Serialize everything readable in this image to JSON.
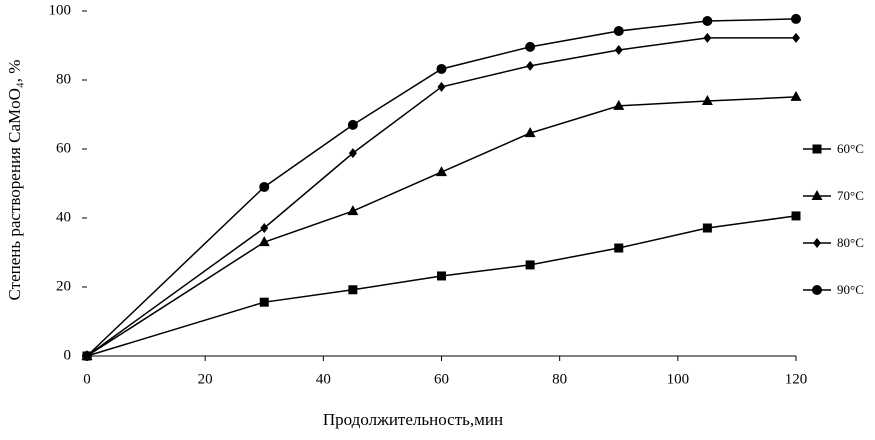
{
  "chart_data": {
    "type": "line",
    "x_label": "Продолжительность,мин",
    "y_label": "Степень растворения CaMoO₄, %",
    "x": [
      0,
      30,
      45,
      60,
      75,
      90,
      105,
      120
    ],
    "xlim": [
      0,
      120
    ],
    "xticks": [
      0,
      20,
      40,
      60,
      80,
      100,
      120
    ],
    "ylim": [
      0,
      100
    ],
    "yticks": [
      0,
      20,
      40,
      60,
      80,
      100
    ],
    "grid": false,
    "legend": "right",
    "series": [
      {
        "name": "60°C",
        "color": "#000000",
        "marker": "square",
        "values": [
          0,
          15.6,
          19.2,
          23.2,
          26.4,
          31.3,
          37.1,
          40.6
        ]
      },
      {
        "name": "70°C",
        "color": "#000000",
        "marker": "triangle",
        "values": [
          0,
          33.0,
          42.0,
          53.3,
          64.6,
          72.5,
          73.9,
          75.1
        ]
      },
      {
        "name": "80°C",
        "color": "#000000",
        "marker": "diamond",
        "values": [
          0,
          37.1,
          58.8,
          78.0,
          84.1,
          88.7,
          92.2,
          92.2
        ]
      },
      {
        "name": "90°C",
        "color": "#000000",
        "marker": "circle",
        "values": [
          0,
          49.0,
          67.0,
          83.2,
          89.6,
          94.2,
          97.1,
          97.7
        ]
      }
    ]
  }
}
